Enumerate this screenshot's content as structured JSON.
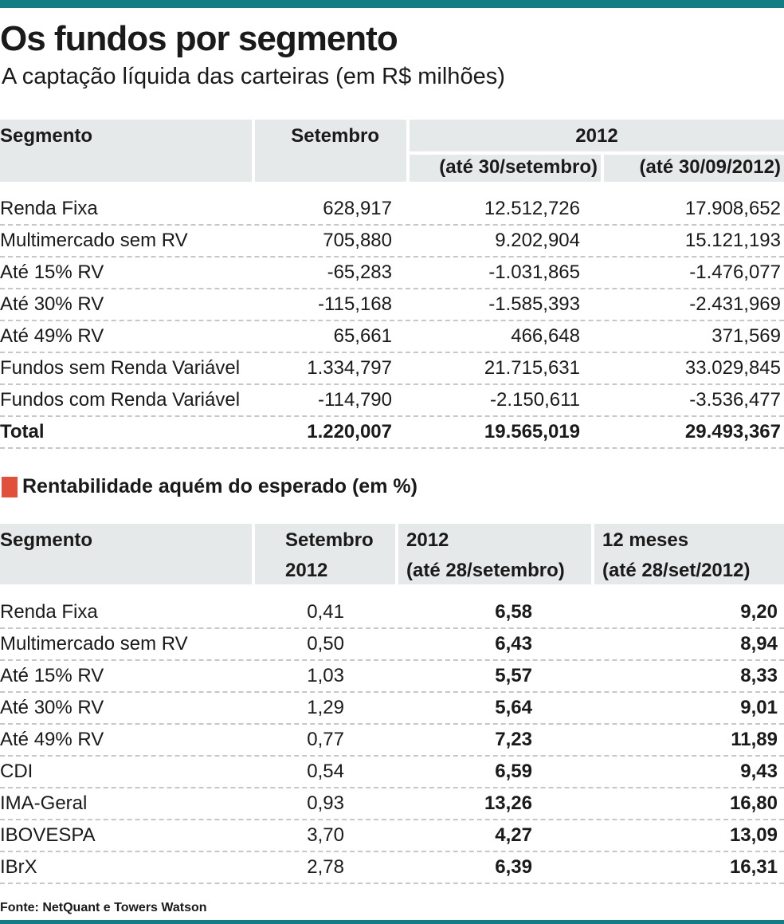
{
  "header": {
    "title": "Os fundos por segmento",
    "subtitle": "A captação líquida das carteiras (em R$ milhões)"
  },
  "table1": {
    "header": {
      "segment": "Segmento",
      "month": "Setembro",
      "year": "2012",
      "sub1": "(até 30/setembro)",
      "sub2": "(até 30/09/2012)"
    },
    "rows": [
      [
        "Renda Fixa",
        "628,917",
        "12.512,726",
        "17.908,652"
      ],
      [
        "Multimercado sem RV",
        "705,880",
        "9.202,904",
        "15.121,193"
      ],
      [
        "Até 15% RV",
        "-65,283",
        "-1.031,865",
        "-1.476,077"
      ],
      [
        "Até 30% RV",
        "-115,168",
        "-1.585,393",
        "-2.431,969"
      ],
      [
        "Até 49% RV",
        "65,661",
        "466,648",
        "371,569"
      ],
      [
        "Fundos sem Renda Variável",
        "1.334,797",
        "21.715,631",
        "33.029,845"
      ],
      [
        "Fundos com Renda Variável",
        "-114,790",
        "-2.150,611",
        "-3.536,477"
      ],
      [
        "Total",
        "1.220,007",
        "19.565,019",
        "29.493,367"
      ]
    ]
  },
  "section2": {
    "title": "Rentabilidade aquém do esperado (em %)"
  },
  "table2": {
    "header": [
      [
        "Segmento"
      ],
      [
        "Setembro",
        "2012"
      ],
      [
        "2012",
        "(até 28/setembro)"
      ],
      [
        "12 meses",
        "(até 28/set/2012)"
      ]
    ],
    "rows": [
      [
        "Renda Fixa",
        "0,41",
        "6,58",
        "9,20"
      ],
      [
        "Multimercado sem RV",
        "0,50",
        "6,43",
        "8,94"
      ],
      [
        "Até 15% RV",
        "1,03",
        "5,57",
        "8,33"
      ],
      [
        "Até 30% RV",
        "1,29",
        "5,64",
        "9,01"
      ],
      [
        "Até 49% RV",
        "0,77",
        "7,23",
        "11,89"
      ],
      [
        "CDI",
        "0,54",
        "6,59",
        "9,43"
      ],
      [
        "IMA-Geral",
        "0,93",
        "13,26",
        "16,80"
      ],
      [
        "IBOVESPA",
        "3,70",
        "4,27",
        "13,09"
      ],
      [
        "IBrX",
        "2,78",
        "6,39",
        "16,31"
      ]
    ]
  },
  "footer": {
    "source": "Fonte: NetQuant e Towers Watson"
  }
}
